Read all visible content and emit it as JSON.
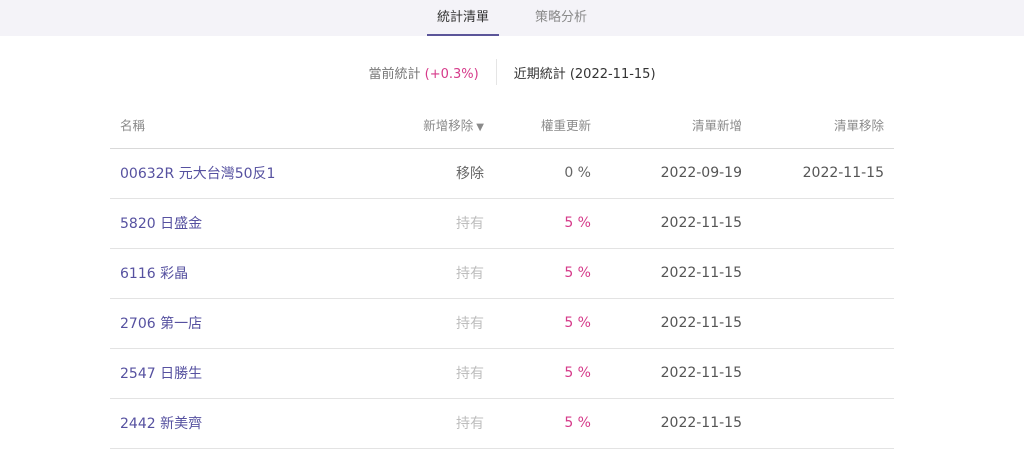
{
  "tabs": [
    {
      "label": "統計清單",
      "active": true
    },
    {
      "label": "策略分析",
      "active": false
    }
  ],
  "subtabs": {
    "current_label": "當前統計",
    "current_change": "(+0.3%)",
    "recent_label": "近期統計 (2022-11-15)"
  },
  "table": {
    "headers": {
      "name": "名稱",
      "action": "新增移除",
      "weight": "權重更新",
      "added": "清單新增",
      "removed": "清單移除"
    },
    "sort_icon": "▼",
    "rows": [
      {
        "name": "00632R 元大台灣50反1",
        "action": "移除",
        "weight": "0 %",
        "added": "2022-09-19",
        "removed": "2022-11-15"
      },
      {
        "name": "5820 日盛金",
        "action": "持有",
        "weight": "5 %",
        "added": "2022-11-15",
        "removed": ""
      },
      {
        "name": "6116 彩晶",
        "action": "持有",
        "weight": "5 %",
        "added": "2022-11-15",
        "removed": ""
      },
      {
        "name": "2706 第一店",
        "action": "持有",
        "weight": "5 %",
        "added": "2022-11-15",
        "removed": ""
      },
      {
        "name": "2547 日勝生",
        "action": "持有",
        "weight": "5 %",
        "added": "2022-11-15",
        "removed": ""
      },
      {
        "name": "2442 新美齊",
        "action": "持有",
        "weight": "5 %",
        "added": "2022-11-15",
        "removed": ""
      }
    ]
  },
  "colors": {
    "accent": "#5b5599",
    "positive": "#d63a8a",
    "link": "#5651a0"
  }
}
